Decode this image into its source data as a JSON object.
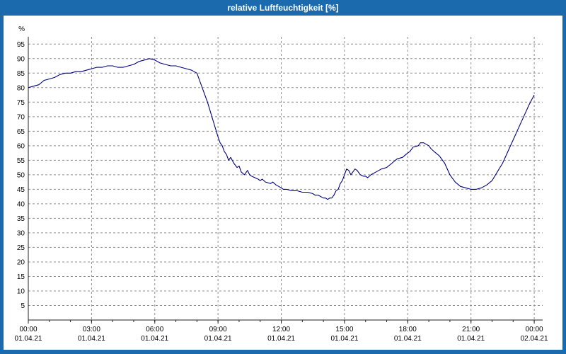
{
  "window": {
    "title": "relative Luftfeuchtigkeit [%]"
  },
  "colors": {
    "frame": "#1a6aad",
    "titlebar": "#1a6aad",
    "title_text": "#ffffff",
    "background": "#ffffff",
    "grid": "#8f8f8f",
    "axis": "#222222",
    "line": "#000080",
    "tick_text": "#000000"
  },
  "chart_data": {
    "type": "line",
    "title": "relative Luftfeuchtigkeit [%]",
    "xlabel": "",
    "ylabel": "%",
    "ylim": [
      0,
      97.5
    ],
    "xlim": [
      0,
      24.4
    ],
    "grid": "dashed",
    "legend": "none",
    "minor_tick_step": 1,
    "y_ticks": [
      5,
      10,
      15,
      20,
      25,
      30,
      35,
      40,
      45,
      50,
      55,
      60,
      65,
      70,
      75,
      80,
      85,
      90,
      95
    ],
    "x_ticks": [
      {
        "hour": 0,
        "time": "00:00",
        "date": "01.04.21"
      },
      {
        "hour": 3,
        "time": "03:00",
        "date": "01.04.21"
      },
      {
        "hour": 6,
        "time": "06:00",
        "date": "01.04.21"
      },
      {
        "hour": 9,
        "time": "09:00",
        "date": "01.04.21"
      },
      {
        "hour": 12,
        "time": "12:00",
        "date": "01.04.21"
      },
      {
        "hour": 15,
        "time": "15:00",
        "date": "01.04.21"
      },
      {
        "hour": 18,
        "time": "18:00",
        "date": "01.04.21"
      },
      {
        "hour": 21,
        "time": "21:00",
        "date": "01.04.21"
      },
      {
        "hour": 24,
        "time": "00:00",
        "date": "02.04.21"
      }
    ],
    "series": [
      {
        "name": "relative Luftfeuchtigkeit",
        "color": "#000080",
        "points": [
          [
            0,
            80
          ],
          [
            0.25,
            80.5
          ],
          [
            0.5,
            81
          ],
          [
            0.75,
            82.5
          ],
          [
            1,
            83
          ],
          [
            1.25,
            83.5
          ],
          [
            1.5,
            84.5
          ],
          [
            1.75,
            85
          ],
          [
            2,
            85
          ],
          [
            2.25,
            85.5
          ],
          [
            2.5,
            85.5
          ],
          [
            2.75,
            86
          ],
          [
            3,
            86.5
          ],
          [
            3.25,
            87
          ],
          [
            3.5,
            87
          ],
          [
            3.75,
            87.5
          ],
          [
            4,
            87.5
          ],
          [
            4.25,
            87
          ],
          [
            4.5,
            87
          ],
          [
            4.75,
            87.5
          ],
          [
            5,
            88
          ],
          [
            5.25,
            89
          ],
          [
            5.5,
            89.5
          ],
          [
            5.75,
            90
          ],
          [
            6,
            89.5
          ],
          [
            6.25,
            88.5
          ],
          [
            6.5,
            88
          ],
          [
            6.75,
            87.5
          ],
          [
            7,
            87.5
          ],
          [
            7.25,
            87
          ],
          [
            7.5,
            86.5
          ],
          [
            7.75,
            86
          ],
          [
            8,
            85
          ],
          [
            8.1,
            83
          ],
          [
            8.3,
            79
          ],
          [
            8.5,
            75
          ],
          [
            8.75,
            69
          ],
          [
            9,
            63
          ],
          [
            9.1,
            61
          ],
          [
            9.2,
            60
          ],
          [
            9.3,
            58
          ],
          [
            9.4,
            57
          ],
          [
            9.5,
            55
          ],
          [
            9.6,
            56
          ],
          [
            9.75,
            54
          ],
          [
            9.9,
            52.5
          ],
          [
            10,
            53
          ],
          [
            10.1,
            51
          ],
          [
            10.25,
            50
          ],
          [
            10.4,
            51.5
          ],
          [
            10.5,
            50
          ],
          [
            10.6,
            49.5
          ],
          [
            10.75,
            49
          ],
          [
            10.9,
            48.5
          ],
          [
            11,
            48
          ],
          [
            11.1,
            48.5
          ],
          [
            11.25,
            47.5
          ],
          [
            11.5,
            47
          ],
          [
            11.6,
            47.5
          ],
          [
            11.75,
            46.5
          ],
          [
            12,
            45.5
          ],
          [
            12.1,
            45
          ],
          [
            12.25,
            45
          ],
          [
            12.5,
            44.5
          ],
          [
            12.75,
            44.5
          ],
          [
            13,
            44
          ],
          [
            13.25,
            44
          ],
          [
            13.5,
            43.5
          ],
          [
            13.6,
            43
          ],
          [
            13.75,
            43
          ],
          [
            14,
            42
          ],
          [
            14.1,
            42
          ],
          [
            14.2,
            41.5
          ],
          [
            14.3,
            42
          ],
          [
            14.4,
            42
          ],
          [
            14.5,
            43
          ],
          [
            14.6,
            44.5
          ],
          [
            14.7,
            45
          ],
          [
            14.8,
            47
          ],
          [
            14.9,
            48
          ],
          [
            15,
            50
          ],
          [
            15.1,
            52
          ],
          [
            15.2,
            51.5
          ],
          [
            15.3,
            50
          ],
          [
            15.4,
            51
          ],
          [
            15.5,
            52
          ],
          [
            15.6,
            51.5
          ],
          [
            15.75,
            50
          ],
          [
            15.9,
            49.5
          ],
          [
            16,
            49.5
          ],
          [
            16.1,
            49
          ],
          [
            16.25,
            50
          ],
          [
            16.5,
            51
          ],
          [
            16.75,
            52
          ],
          [
            17,
            52.5
          ],
          [
            17.25,
            54
          ],
          [
            17.5,
            55.5
          ],
          [
            17.75,
            56
          ],
          [
            18,
            57.5
          ],
          [
            18.1,
            58
          ],
          [
            18.25,
            59.5
          ],
          [
            18.5,
            60
          ],
          [
            18.6,
            61
          ],
          [
            18.75,
            61
          ],
          [
            19,
            60
          ],
          [
            19.1,
            59
          ],
          [
            19.25,
            58
          ],
          [
            19.5,
            56.5
          ],
          [
            19.75,
            54
          ],
          [
            20,
            50
          ],
          [
            20.25,
            47.5
          ],
          [
            20.5,
            46
          ],
          [
            20.75,
            45.5
          ],
          [
            21,
            45
          ],
          [
            21.25,
            45
          ],
          [
            21.5,
            45.5
          ],
          [
            21.75,
            46.5
          ],
          [
            22,
            48
          ],
          [
            22.25,
            51
          ],
          [
            22.5,
            54
          ],
          [
            22.75,
            58
          ],
          [
            23,
            62
          ],
          [
            23.25,
            66
          ],
          [
            23.5,
            70
          ],
          [
            23.75,
            74
          ],
          [
            24,
            77.5
          ]
        ]
      }
    ]
  }
}
